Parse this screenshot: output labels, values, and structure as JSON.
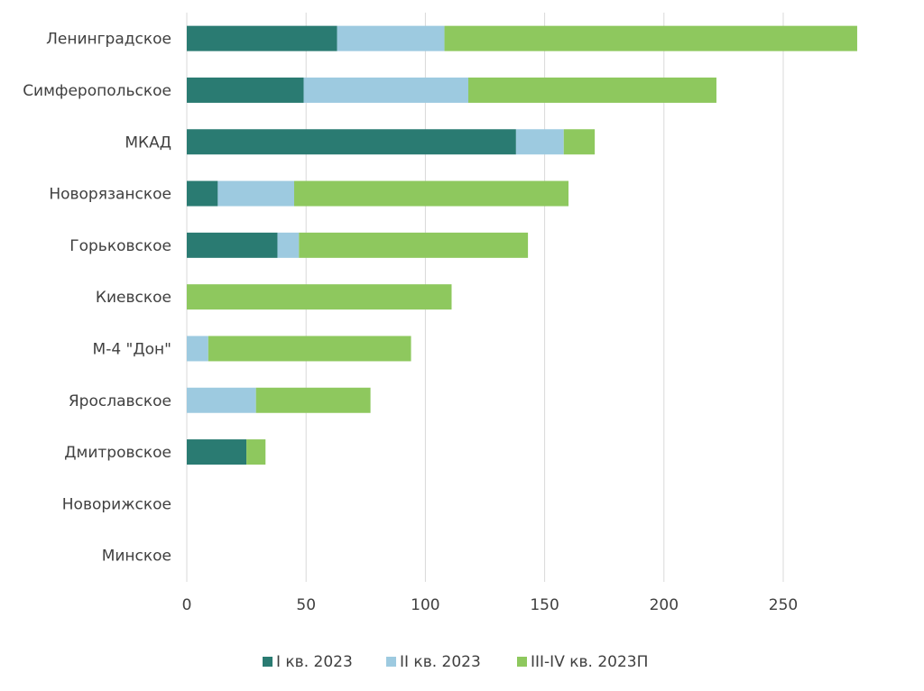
{
  "chart_data": {
    "type": "bar",
    "orientation": "horizontal",
    "stacked": true,
    "categories": [
      "Ленинградское",
      "Симферопольское",
      "МКАД",
      "Новорязанское",
      "Горьковское",
      "Киевское",
      "М-4 \"Дон\"",
      "Ярославское",
      "Дмитровское",
      "Новорижское",
      "Минское"
    ],
    "series": [
      {
        "name": "I кв. 2023",
        "color": "#2a7b72",
        "values": [
          63,
          49,
          138,
          13,
          38,
          0,
          0,
          0,
          25,
          0,
          0
        ]
      },
      {
        "name": "II кв. 2023",
        "color": "#9dcae0",
        "values": [
          45,
          69,
          20,
          32,
          9,
          0,
          9,
          29,
          0,
          0,
          0
        ]
      },
      {
        "name": "III-IV кв. 2023П",
        "color": "#8ec85e",
        "values": [
          173,
          104,
          13,
          115,
          96,
          111,
          85,
          48,
          8,
          0,
          0
        ]
      }
    ],
    "xlim": [
      0,
      300
    ],
    "xticks": [
      0,
      50,
      100,
      150,
      200,
      250
    ],
    "grid": true,
    "legend_position": "bottom"
  }
}
